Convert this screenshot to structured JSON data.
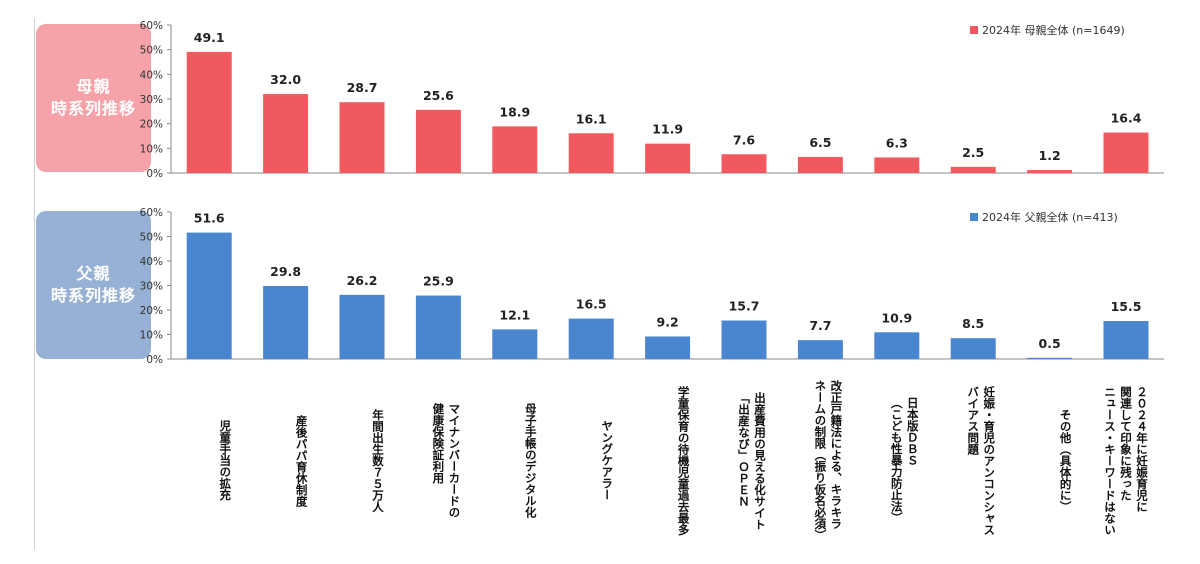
{
  "panels": {
    "mother": {
      "label_line1": "母親",
      "label_line2": "時系列推移"
    },
    "father": {
      "label_line1": "父親",
      "label_line2": "時系列推移"
    }
  },
  "chart_data": [
    {
      "type": "bar",
      "legend": "2024年  母親全体 (n=1649)",
      "legend_position": "top-right",
      "color": "#f05a5e",
      "ylim": [
        0,
        60
      ],
      "yticks": [
        "0%",
        "10%",
        "20%",
        "30%",
        "40%",
        "50%",
        "60%"
      ],
      "categories": [
        "児童手当の拡充",
        "産後パパ育休制度",
        "年間出生数７５万人",
        "マイナンバーカードの\n健康保険証利用",
        "母子手帳のデジタル化",
        "ヤングケアラー",
        "学童保育の待機児童過去最多",
        "出産費用の見える化サイト\n「出産なび」ＯＰＥＮ",
        "改正戸籍法による、キラキラ\nネームの制限（振り仮名必須）",
        "日本版ＤＢＳ\n（こども性暴力防止法）",
        "妊娠・育児のアンコンシャス\nバイアス問題",
        "その他（具体的に）",
        "２０２４年に妊娠育児に\n関連して印象に残った\nニュース・キーワードはない"
      ],
      "values": [
        49.1,
        32.0,
        28.7,
        25.6,
        18.9,
        16.1,
        11.9,
        7.6,
        6.5,
        6.3,
        2.5,
        1.2,
        16.4
      ],
      "labels": [
        "49.1",
        "32.0",
        "28.7",
        "25.6",
        "18.9",
        "16.1",
        "11.9",
        "7.6",
        "6.5",
        "6.3",
        "2.5",
        "1.2",
        "16.4"
      ]
    },
    {
      "type": "bar",
      "legend": "2024年  父親全体 (n=413)",
      "legend_position": "top-right",
      "color": "#4a86d0",
      "ylim": [
        0,
        60
      ],
      "yticks": [
        "0%",
        "10%",
        "20%",
        "30%",
        "40%",
        "50%",
        "60%"
      ],
      "categories": [
        "児童手当の拡充",
        "産後パパ育休制度",
        "年間出生数７５万人",
        "マイナンバーカードの\n健康保険証利用",
        "母子手帳のデジタル化",
        "ヤングケアラー",
        "学童保育の待機児童過去最多",
        "出産費用の見える化サイト\n「出産なび」ＯＰＥＮ",
        "改正戸籍法による、キラキラ\nネームの制限（振り仮名必須）",
        "日本版ＤＢＳ\n（こども性暴力防止法）",
        "妊娠・育児のアンコンシャス\nバイアス問題",
        "その他（具体的に）",
        "２０２４年に妊娠育児に\n関連して印象に残った\nニュース・キーワードはない"
      ],
      "values": [
        51.6,
        29.8,
        26.2,
        25.9,
        12.1,
        16.5,
        9.2,
        15.7,
        7.7,
        10.9,
        8.5,
        0.5,
        15.5
      ],
      "labels": [
        "51.6",
        "29.8",
        "26.2",
        "25.9",
        "12.1",
        "16.5",
        "9.2",
        "15.7",
        "7.7",
        "10.9",
        "8.5",
        "0.5",
        "15.5"
      ]
    }
  ]
}
